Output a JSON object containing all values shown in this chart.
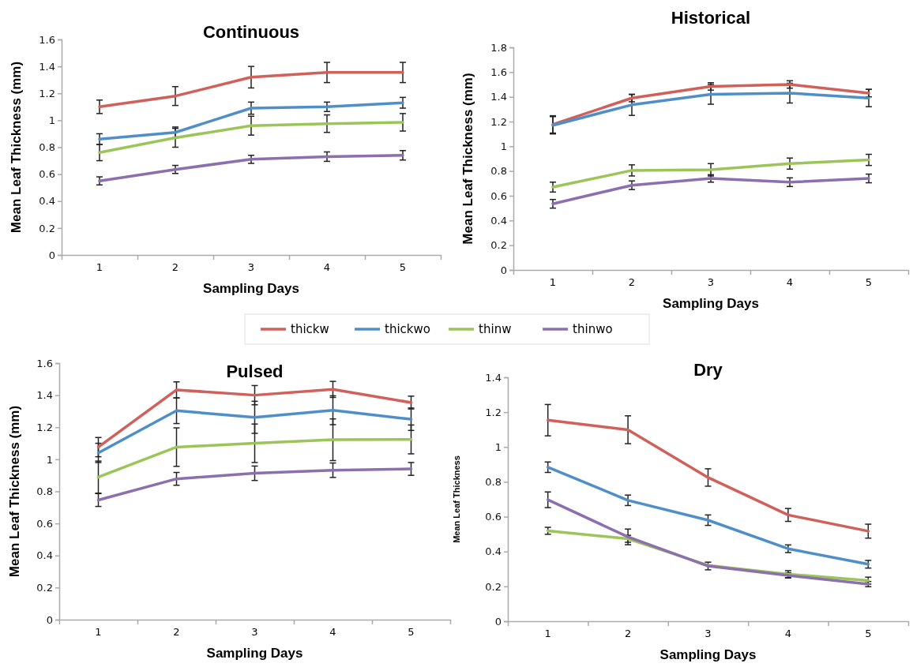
{
  "chart_data": [
    {
      "type": "line",
      "title": "Continuous",
      "xlabel": "Sampling Days",
      "ylabel": "Mean Leaf Thickness (mm)",
      "categories": [
        "1",
        "2",
        "3",
        "4",
        "5"
      ],
      "ylim": [
        0,
        1.6
      ],
      "yticks": [
        0,
        0.2,
        0.4,
        0.6,
        0.8,
        1,
        1.2,
        1.4,
        1.6
      ],
      "legend": "bottom",
      "marker": "none",
      "series": [
        {
          "name": "thickw",
          "color": "#d0605a",
          "values": [
            1.1,
            1.18,
            1.32,
            1.355,
            1.355
          ],
          "errors": [
            0.05,
            0.07,
            0.08,
            0.075,
            0.075
          ]
        },
        {
          "name": "thickwo",
          "color": "#4f8fc9",
          "values": [
            0.86,
            0.91,
            1.09,
            1.1,
            1.13
          ],
          "errors": [
            0.04,
            0.04,
            0.045,
            0.035,
            0.04
          ]
        },
        {
          "name": "thinw",
          "color": "#9bc459",
          "values": [
            0.76,
            0.87,
            0.96,
            0.975,
            0.985
          ],
          "errors": [
            0.06,
            0.07,
            0.07,
            0.065,
            0.065
          ]
        },
        {
          "name": "thinwo",
          "color": "#8b6fae",
          "values": [
            0.55,
            0.635,
            0.71,
            0.73,
            0.74
          ],
          "errors": [
            0.03,
            0.03,
            0.03,
            0.035,
            0.035
          ]
        }
      ]
    },
    {
      "type": "line",
      "title": "Historical",
      "xlabel": "Sampling Days",
      "ylabel": "Mean Leaf Thickness (mm)",
      "categories": [
        "1",
        "2",
        "3",
        "4",
        "5"
      ],
      "ylim": [
        0,
        1.8
      ],
      "yticks": [
        0,
        0.2,
        0.4,
        0.6,
        0.8,
        1,
        1.2,
        1.4,
        1.6,
        1.8
      ],
      "marker": "none",
      "series": [
        {
          "color": "#d0605a",
          "values": [
            1.177,
            1.39,
            1.484,
            1.5,
            1.43
          ],
          "errors": [
            0.07,
            0.03,
            0.03,
            0.03,
            0.03
          ]
        },
        {
          "color": "#4f8fc9",
          "values": [
            1.17,
            1.335,
            1.42,
            1.43,
            1.39
          ],
          "errors": [
            0.07,
            0.085,
            0.08,
            0.08,
            0.07
          ]
        },
        {
          "color": "#9bc459",
          "values": [
            0.67,
            0.805,
            0.81,
            0.86,
            0.89
          ],
          "errors": [
            0.04,
            0.045,
            0.05,
            0.045,
            0.045
          ]
        },
        {
          "color": "#8b6fae",
          "values": [
            0.535,
            0.685,
            0.74,
            0.71,
            0.74
          ],
          "errors": [
            0.035,
            0.035,
            0.03,
            0.035,
            0.035
          ]
        }
      ]
    },
    {
      "type": "line",
      "title": "Pulsed",
      "xlabel": "Sampling Days",
      "ylabel": "Mean Leaf Thickness (mm)",
      "categories": [
        "1",
        "2",
        "3",
        "4",
        "5"
      ],
      "ylim": [
        0,
        1.6
      ],
      "yticks": [
        0,
        0.2,
        0.4,
        0.6,
        0.8,
        1,
        1.2,
        1.4,
        1.6
      ],
      "marker": "none",
      "series": [
        {
          "color": "#d0605a",
          "values": [
            1.076,
            1.433,
            1.4,
            1.436,
            1.354
          ],
          "errors": [
            0.06,
            0.05,
            0.06,
            0.05,
            0.04
          ]
        },
        {
          "color": "#4f8fc9",
          "values": [
            1.04,
            1.303,
            1.262,
            1.306,
            1.25
          ],
          "errors": [
            0.06,
            0.08,
            0.1,
            0.09,
            0.07
          ]
        },
        {
          "color": "#9bc459",
          "values": [
            0.889,
            1.076,
            1.1,
            1.122,
            1.124
          ],
          "errors": [
            0.1,
            0.12,
            0.12,
            0.13,
            0.09
          ]
        },
        {
          "color": "#8b6fae",
          "values": [
            0.746,
            0.878,
            0.913,
            0.932,
            0.94
          ],
          "errors": [
            0.04,
            0.04,
            0.045,
            0.045,
            0.04
          ]
        }
      ]
    },
    {
      "type": "line",
      "title": "Dry",
      "xlabel": "Sampling Days",
      "ylabel": "Mean Leaf Thickness",
      "categories": [
        "1",
        "2",
        "3",
        "4",
        "5"
      ],
      "ylim": [
        0,
        1.4
      ],
      "yticks": [
        0,
        0.2,
        0.4,
        0.6,
        0.8,
        1,
        1.2,
        1.4
      ],
      "marker": "none",
      "series": [
        {
          "color": "#d0605a",
          "values": [
            1.154,
            1.099,
            0.825,
            0.61,
            0.517
          ],
          "errors": [
            0.09,
            0.08,
            0.05,
            0.037,
            0.04
          ]
        },
        {
          "color": "#4f8fc9",
          "values": [
            0.884,
            0.694,
            0.58,
            0.416,
            0.327
          ],
          "errors": [
            0.03,
            0.03,
            0.03,
            0.022,
            0.022
          ]
        },
        {
          "color": "#9bc459",
          "values": [
            0.519,
            0.473,
            0.321,
            0.27,
            0.233
          ],
          "errors": [
            0.02,
            0.02,
            null,
            0.02,
            0.02
          ]
        },
        {
          "color": "#8b6fae",
          "values": [
            0.697,
            0.484,
            0.317,
            0.263,
            0.213
          ],
          "errors": [
            0.045,
            0.045,
            0.022,
            0.015,
            0.015
          ]
        }
      ]
    }
  ]
}
